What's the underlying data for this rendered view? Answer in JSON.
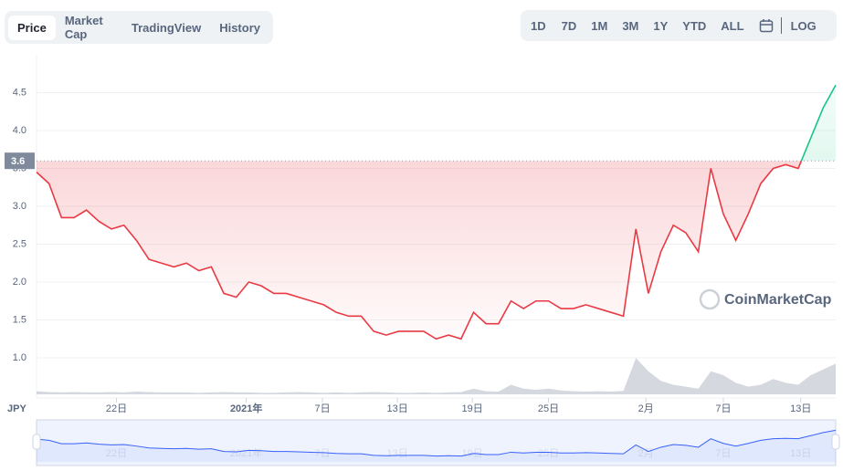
{
  "tabs": [
    "Price",
    "Market Cap",
    "TradingView",
    "History"
  ],
  "ranges": [
    "1D",
    "7D",
    "1M",
    "3M",
    "1Y",
    "YTD",
    "ALL"
  ],
  "log_button": "LOG",
  "watermark": "CoinMarketCap",
  "currency": "JPY",
  "chart_data": {
    "type": "line",
    "values": [
      3.45,
      3.3,
      2.85,
      2.85,
      2.95,
      2.8,
      2.7,
      2.75,
      2.55,
      2.3,
      2.25,
      2.2,
      2.25,
      2.15,
      2.2,
      1.85,
      1.8,
      2.0,
      1.95,
      1.85,
      1.85,
      1.8,
      1.75,
      1.7,
      1.6,
      1.55,
      1.55,
      1.35,
      1.3,
      1.35,
      1.35,
      1.35,
      1.25,
      1.3,
      1.25,
      1.6,
      1.45,
      1.45,
      1.75,
      1.65,
      1.75,
      1.75,
      1.65,
      1.65,
      1.7,
      1.65,
      1.6,
      1.55,
      2.7,
      1.85,
      2.4,
      2.75,
      2.65,
      2.4,
      3.5,
      2.9,
      2.55,
      2.9,
      3.3,
      3.5,
      3.55,
      3.5,
      3.9,
      4.3,
      4.6
    ],
    "volume": [
      0.8,
      0.6,
      0.5,
      0.6,
      0.5,
      0.5,
      0.6,
      0.5,
      0.7,
      0.6,
      0.5,
      0.5,
      0.5,
      0.4,
      0.5,
      0.6,
      0.5,
      0.5,
      0.4,
      0.4,
      0.5,
      0.6,
      0.5,
      0.4,
      0.5,
      0.4,
      0.5,
      0.6,
      0.5,
      0.4,
      0.4,
      0.5,
      0.4,
      0.5,
      0.6,
      1.5,
      0.8,
      0.7,
      2.5,
      1.5,
      1.2,
      1.5,
      1.0,
      0.8,
      0.7,
      0.8,
      0.7,
      0.9,
      9.5,
      6.0,
      3.5,
      2.5,
      2.0,
      1.5,
      6.0,
      5.0,
      3.0,
      2.0,
      2.5,
      4.0,
      3.0,
      2.5,
      5.0,
      6.5,
      8.0
    ],
    "up_color": "#16c784",
    "down_color": "#ea3943",
    "volume_color": "#d5d9df",
    "baseline": 3.6,
    "ylim": [
      0.5,
      5.0
    ],
    "y2lim": [
      0,
      10
    ],
    "yticks": [
      {
        "value": 1.0,
        "label": "1.0"
      },
      {
        "value": 1.5,
        "label": "1.5"
      },
      {
        "value": 2.0,
        "label": "2.0"
      },
      {
        "value": 2.5,
        "label": "2.5"
      },
      {
        "value": 3.0,
        "label": "3.0"
      },
      {
        "value": 3.5,
        "label": "3.5"
      },
      {
        "value": 4.0,
        "label": "4.0"
      },
      {
        "value": 4.5,
        "label": "4.5"
      }
    ],
    "xlim": [
      0,
      64
    ],
    "xticks": [
      {
        "value": 6.4,
        "label": "22日"
      },
      {
        "value": 16.8,
        "label": "2021年"
      },
      {
        "value": 22.9,
        "label": "7日"
      },
      {
        "value": 28.9,
        "label": "13日"
      },
      {
        "value": 34.9,
        "label": "19日"
      },
      {
        "value": 41,
        "label": "25日"
      },
      {
        "value": 48.8,
        "label": "2月"
      },
      {
        "value": 55,
        "label": "7日"
      },
      {
        "value": 61.2,
        "label": "13日"
      }
    ],
    "grid": true
  }
}
